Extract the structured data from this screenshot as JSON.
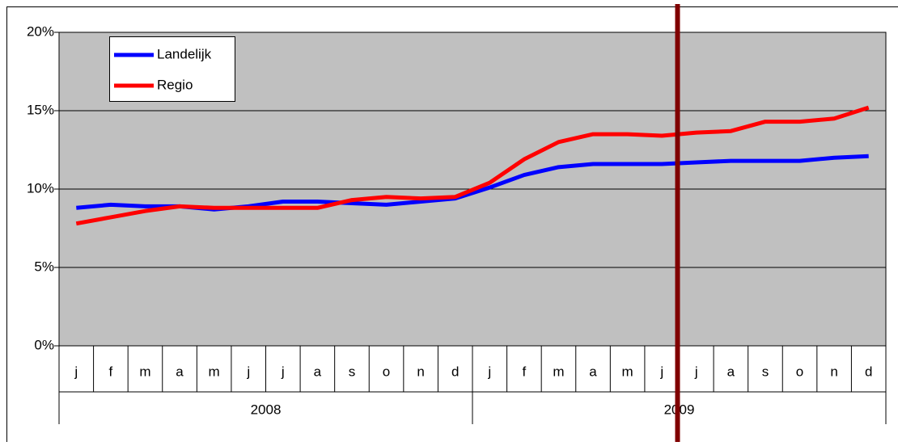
{
  "chart_data": {
    "type": "line",
    "categories": [
      "j",
      "f",
      "m",
      "a",
      "m",
      "j",
      "j",
      "a",
      "s",
      "o",
      "n",
      "d",
      "j",
      "f",
      "m",
      "a",
      "m",
      "j",
      "j",
      "a",
      "s",
      "o",
      "n",
      "d"
    ],
    "groups": [
      {
        "label": "2008",
        "span": 12
      },
      {
        "label": "2009",
        "span": 12
      }
    ],
    "series": [
      {
        "name": "Landelijk",
        "color": "#0000ff",
        "values": [
          8.8,
          9.0,
          8.9,
          8.9,
          8.7,
          8.9,
          9.2,
          9.2,
          9.1,
          9.0,
          9.2,
          9.4,
          10.1,
          10.9,
          11.4,
          11.6,
          11.6,
          11.6,
          11.7,
          11.8,
          11.8,
          11.8,
          12.0,
          12.1
        ]
      },
      {
        "name": "Regio",
        "color": "#ff0000",
        "values": [
          7.8,
          8.2,
          8.6,
          8.9,
          8.8,
          8.8,
          8.8,
          8.8,
          9.3,
          9.5,
          9.4,
          9.5,
          10.4,
          11.9,
          13.0,
          13.5,
          13.5,
          13.4,
          13.6,
          13.7,
          14.3,
          14.3,
          14.5,
          15.2
        ]
      }
    ],
    "ylim": [
      0,
      20
    ],
    "yticks": [
      {
        "value": 0,
        "label": "0%"
      },
      {
        "value": 5,
        "label": "5%"
      },
      {
        "value": 10,
        "label": "10%"
      },
      {
        "value": 15,
        "label": "15%"
      },
      {
        "value": 20,
        "label": "20%"
      }
    ],
    "grid": true,
    "plot_background": "#c0c0c0",
    "legend": "top-left",
    "vline": {
      "after_category": 17,
      "color": "#800000"
    }
  }
}
